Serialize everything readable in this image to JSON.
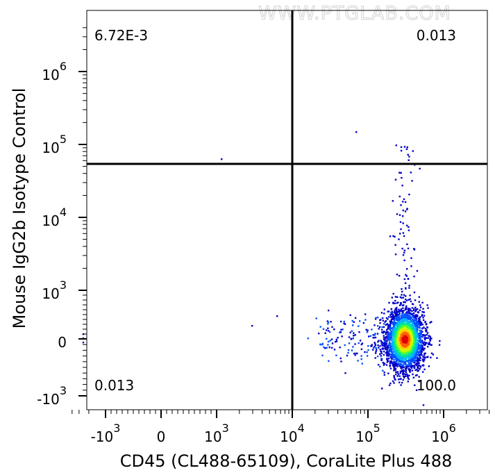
{
  "watermark": "WWW.PTGLAB.COM",
  "chart_data": {
    "type": "scatter",
    "subtype": "flow-cytometry-density-dot-plot",
    "xlabel": "CD45 (CL488-65109), CoraLite Plus 488",
    "ylabel": "Mouse IgG2b Isotype Control",
    "x_scale": "biexponential",
    "y_scale": "biexponential",
    "x_tick_labels": [
      {
        "base": "-10",
        "exp": "3",
        "value": -1000
      },
      {
        "base": "0",
        "exp": "",
        "value": 0
      },
      {
        "base": "10",
        "exp": "3",
        "value": 1000
      },
      {
        "base": "10",
        "exp": "4",
        "value": 10000
      },
      {
        "base": "10",
        "exp": "5",
        "value": 100000
      },
      {
        "base": "10",
        "exp": "6",
        "value": 1000000
      }
    ],
    "y_tick_labels": [
      {
        "base": "-10",
        "exp": "3",
        "value": -1000
      },
      {
        "base": "0",
        "exp": "",
        "value": 0
      },
      {
        "base": "10",
        "exp": "3",
        "value": 1000
      },
      {
        "base": "10",
        "exp": "4",
        "value": 10000
      },
      {
        "base": "10",
        "exp": "5",
        "value": 100000
      },
      {
        "base": "10",
        "exp": "6",
        "value": 1000000
      }
    ],
    "gate": {
      "x": 10000,
      "y": 35000
    },
    "quadrants": [
      {
        "position": "top-left",
        "value": "6.72E-3"
      },
      {
        "position": "top-right",
        "value": "0.013"
      },
      {
        "position": "bottom-left",
        "value": "0.013"
      },
      {
        "position": "bottom-right",
        "value": "100.0"
      }
    ],
    "main_population": {
      "x_center": 300000,
      "y_center": 0
    },
    "density_colors": [
      "#0000c8",
      "#0050ff",
      "#00b4ff",
      "#00e0a0",
      "#40ff40",
      "#c8ff00",
      "#ffd000",
      "#ff6000",
      "#e00000"
    ]
  }
}
